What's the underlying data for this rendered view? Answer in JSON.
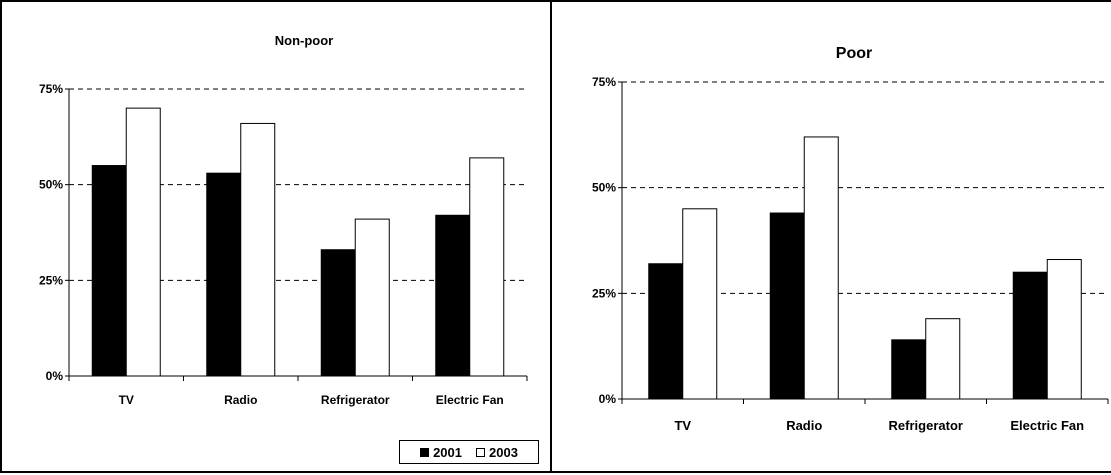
{
  "chart_data": [
    {
      "type": "bar",
      "title": "Non-poor",
      "categories": [
        "TV",
        "Radio",
        "Refrigerator",
        "Electric Fan"
      ],
      "series": [
        {
          "name": "2001",
          "values": [
            55,
            53,
            33,
            42
          ],
          "color": "#000000"
        },
        {
          "name": "2003",
          "values": [
            70,
            66,
            41,
            57
          ],
          "color": "#ffffff"
        }
      ],
      "ylim": [
        0,
        75
      ],
      "yticks": [
        "0%",
        "25%",
        "50%",
        "75%"
      ],
      "grid": true,
      "legend": "bottom-right"
    },
    {
      "type": "bar",
      "title": "Poor",
      "categories": [
        "TV",
        "Radio",
        "Refrigerator",
        "Electric Fan"
      ],
      "series": [
        {
          "name": "2001",
          "values": [
            32,
            44,
            14,
            30
          ],
          "color": "#000000"
        },
        {
          "name": "2003",
          "values": [
            45,
            62,
            19,
            33
          ],
          "color": "#ffffff"
        }
      ],
      "ylim": [
        0,
        75
      ],
      "yticks": [
        "0%",
        "25%",
        "50%",
        "75%"
      ],
      "grid": true,
      "legend": "none"
    }
  ],
  "legend": {
    "items": [
      {
        "label": "2001",
        "color": "#000000"
      },
      {
        "label": "2003",
        "color": "#ffffff"
      }
    ]
  }
}
